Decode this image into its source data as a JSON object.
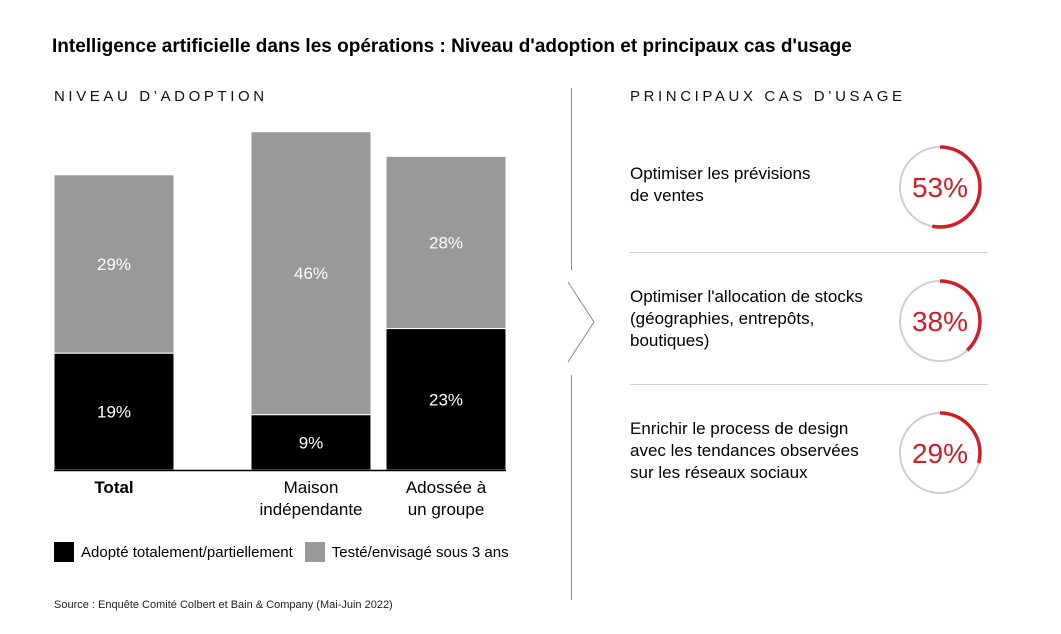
{
  "title": "Intelligence artificielle dans les opérations : Niveau d'adoption et principaux cas d'usage",
  "left_header": "NIVEAU D’ADOPTION",
  "right_header": "PRINCIPAUX CAS D’USAGE",
  "colors": {
    "adopted": "#000000",
    "tested": "#999999",
    "accent": "#cc1f26",
    "ring_bg": "#cfcfcf"
  },
  "chart_data": {
    "type": "bar",
    "stacked": true,
    "categories": [
      "Total",
      "Maison indépendante",
      "Adossée à un groupe"
    ],
    "category_lines": [
      [
        "Total"
      ],
      [
        "Maison",
        "indépendante"
      ],
      [
        "Adossée à",
        "un groupe"
      ]
    ],
    "series": [
      {
        "name": "Adopté totalement/partiellement",
        "values": [
          19,
          9,
          23
        ],
        "labels": [
          "19%",
          "9%",
          "23%"
        ],
        "color": "#000000"
      },
      {
        "name": "Testé/envisagé sous 3 ans",
        "values": [
          29,
          46,
          28
        ],
        "labels": [
          "29%",
          "46%",
          "28%"
        ],
        "color": "#999999"
      }
    ],
    "legend_position": "bottom",
    "grid": false
  },
  "legend": [
    {
      "label": "Adopté totalement/partiellement",
      "color": "#000000"
    },
    {
      "label": "Testé/envisagé sous 3 ans",
      "color": "#999999"
    }
  ],
  "use_cases": [
    {
      "lines": [
        "Optimiser les prévisions",
        "de ventes"
      ],
      "percent": 53,
      "label": "53%"
    },
    {
      "lines": [
        "Optimiser l'allocation de stocks",
        "(géographies, entrepôts,",
        "boutiques)"
      ],
      "percent": 38,
      "label": "38%"
    },
    {
      "lines": [
        "Enrichir le process de design",
        "avec les tendances observées",
        "sur les réseaux sociaux"
      ],
      "percent": 29,
      "label": "29%"
    }
  ],
  "source": "Source : Enquête Comité Colbert et Bain & Company (Mai-Juin 2022)"
}
